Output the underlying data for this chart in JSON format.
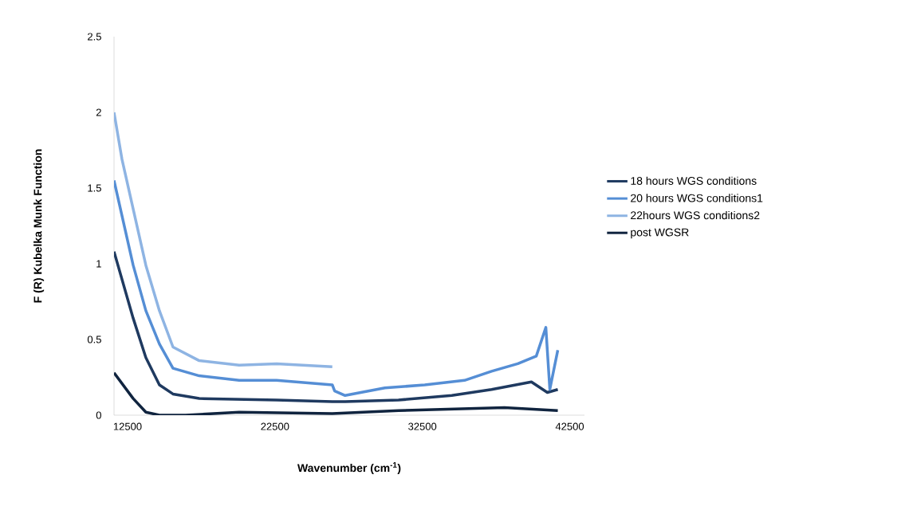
{
  "chart_data": {
    "type": "line",
    "xlabel": "Wavenumber (cm$^{-1}$)",
    "ylabel": "F (R) Kubelka Munk Function",
    "xlim": [
      11580,
      43500
    ],
    "ylim": [
      0,
      2.5
    ],
    "xticks": [
      12500,
      22500,
      32500,
      42500
    ],
    "yticks": [
      0,
      0.5,
      1,
      1.5,
      2,
      2.5
    ],
    "legend": "right",
    "series": [
      {
        "name": "18 hours WGS conditions",
        "color": "#1f3a60",
        "x": [
          11580,
          12880,
          13740,
          14660,
          15580,
          17360,
          22610,
          26390,
          27260,
          30880,
          34500,
          37200,
          39900,
          40980,
          41690
        ],
        "values": [
          1.08,
          0.64,
          0.38,
          0.2,
          0.14,
          0.11,
          0.1,
          0.09,
          0.09,
          0.1,
          0.13,
          0.17,
          0.22,
          0.15,
          0.17
        ]
      },
      {
        "name": "20 hours WGS conditions1",
        "color": "#558ed5",
        "x": [
          11580,
          12880,
          13740,
          14660,
          15580,
          17360,
          20070,
          22610,
          26390,
          26550,
          27260,
          29960,
          32660,
          35360,
          37200,
          38980,
          40230,
          40880,
          41150,
          41690
        ],
        "values": [
          1.55,
          0.99,
          0.69,
          0.47,
          0.31,
          0.26,
          0.23,
          0.23,
          0.2,
          0.16,
          0.13,
          0.18,
          0.2,
          0.23,
          0.29,
          0.34,
          0.39,
          0.58,
          0.17,
          0.43
        ]
      },
      {
        "name": "22hours WGS conditions2",
        "color": "#8eb4e3",
        "x": [
          11580,
          12120,
          13740,
          14660,
          15580,
          17360,
          20070,
          22610,
          26390
        ],
        "values": [
          2.0,
          1.69,
          0.99,
          0.69,
          0.45,
          0.36,
          0.33,
          0.34,
          0.32
        ]
      },
      {
        "name": "post WGSR",
        "color": "#10243f",
        "x": [
          11580,
          12880,
          13740,
          14660,
          16440,
          20070,
          26390,
          30880,
          38070,
          41690
        ],
        "values": [
          0.28,
          0.11,
          0.02,
          0.0,
          0.0,
          0.02,
          0.01,
          0.03,
          0.05,
          0.03
        ]
      }
    ]
  }
}
